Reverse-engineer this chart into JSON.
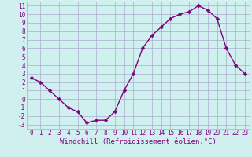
{
  "x": [
    0,
    1,
    2,
    3,
    4,
    5,
    6,
    7,
    8,
    9,
    10,
    11,
    12,
    13,
    14,
    15,
    16,
    17,
    18,
    19,
    20,
    21,
    22,
    23
  ],
  "y": [
    2.5,
    2.0,
    1.0,
    0.0,
    -1.0,
    -1.5,
    -2.8,
    -2.5,
    -2.5,
    -1.5,
    1.0,
    3.0,
    6.0,
    7.5,
    8.5,
    9.5,
    10.0,
    10.3,
    11.0,
    10.5,
    9.5,
    6.0,
    4.0,
    3.0
  ],
  "line_color": "#800080",
  "marker_color": "#800080",
  "bg_color": "#cff0ee",
  "grid_color": "#aaaacc",
  "xlabel": "Windchill (Refroidissement éolien,°C)",
  "xlim": [
    -0.5,
    23.5
  ],
  "ylim": [
    -3.5,
    11.5
  ],
  "xticks": [
    0,
    1,
    2,
    3,
    4,
    5,
    6,
    7,
    8,
    9,
    10,
    11,
    12,
    13,
    14,
    15,
    16,
    17,
    18,
    19,
    20,
    21,
    22,
    23
  ],
  "yticks": [
    -3,
    -2,
    -1,
    0,
    1,
    2,
    3,
    4,
    5,
    6,
    7,
    8,
    9,
    10,
    11
  ],
  "label_fontsize": 6.5,
  "tick_fontsize": 5.5,
  "line_width": 1.0,
  "marker_size": 2.5
}
